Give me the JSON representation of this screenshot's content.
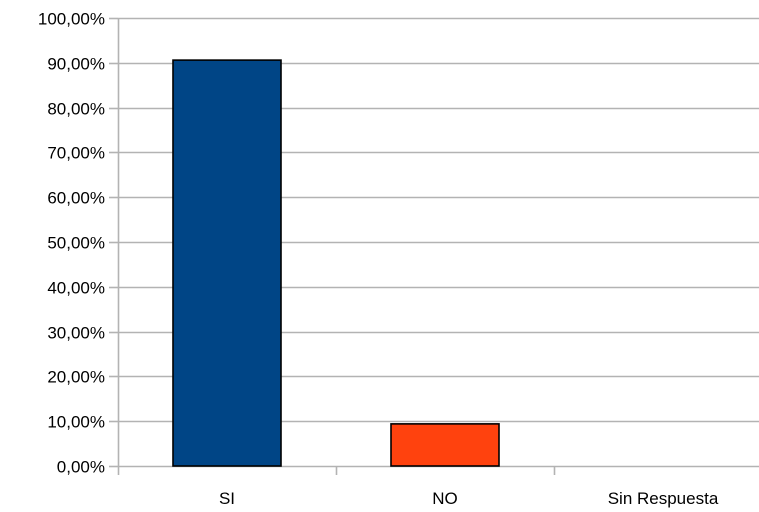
{
  "chart_data": {
    "type": "bar",
    "categories": [
      "SI",
      "NO",
      "Sin Respuesta"
    ],
    "values": [
      90.6,
      9.4,
      0
    ],
    "bar_colors": [
      "#004586",
      "#ff420e",
      "#ffd320"
    ],
    "ylim": [
      0,
      100
    ],
    "yticks": [
      0,
      10,
      20,
      30,
      40,
      50,
      60,
      70,
      80,
      90,
      100
    ],
    "ytick_labels": [
      "0,00%",
      "10,00%",
      "20,00%",
      "30,00%",
      "40,00%",
      "50,00%",
      "60,00%",
      "70,00%",
      "80,00%",
      "90,00%",
      "100,00%"
    ],
    "grid": true,
    "legend": "none",
    "title": "",
    "xlabel": "",
    "ylabel": ""
  }
}
